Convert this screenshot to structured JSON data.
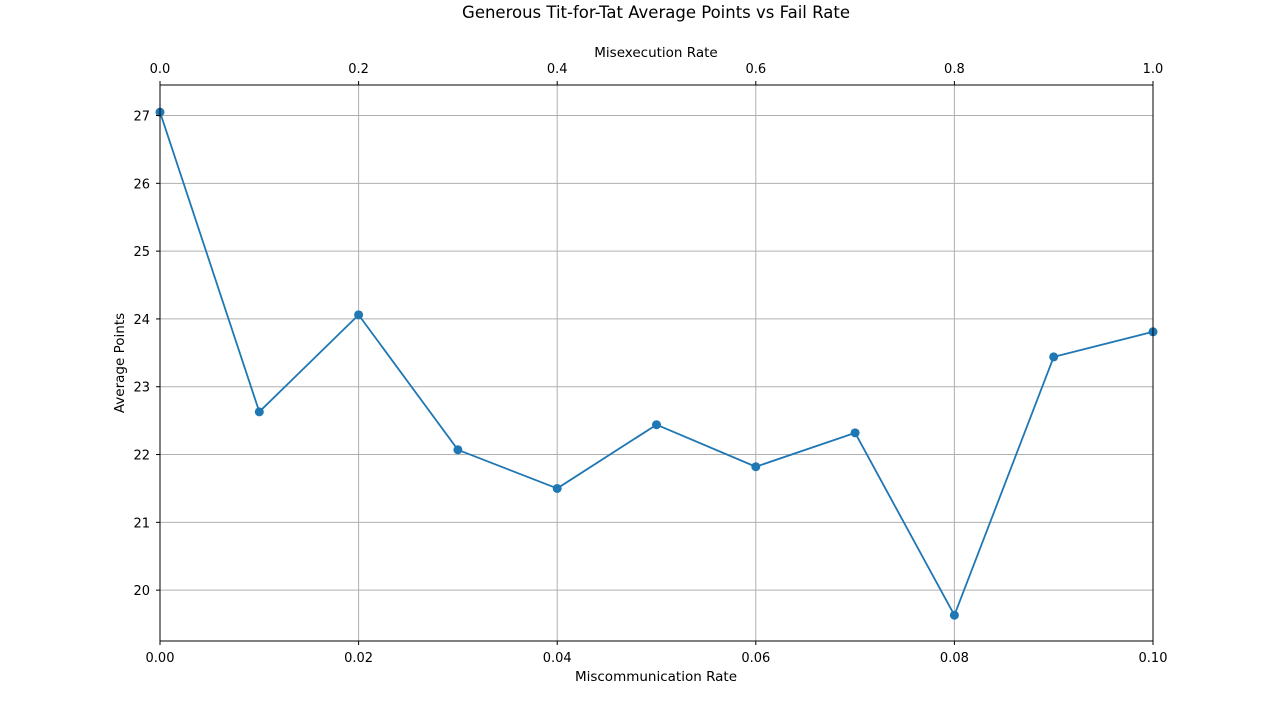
{
  "chart_data": {
    "type": "line",
    "title": "Generous Tit-for-Tat Average Points vs Fail Rate",
    "xlabel": "Miscommunication Rate",
    "x2label": "Misexecution Rate",
    "ylabel": "Average Points",
    "xlim": [
      0.0,
      0.1
    ],
    "x2lim": [
      0.0,
      1.0
    ],
    "ylim": [
      19.25,
      27.45
    ],
    "xticks": [
      "0.00",
      "0.02",
      "0.04",
      "0.06",
      "0.08",
      "0.10"
    ],
    "x2ticks": [
      "0.0",
      "0.2",
      "0.4",
      "0.6",
      "0.8",
      "1.0"
    ],
    "yticks": [
      "20",
      "21",
      "22",
      "23",
      "24",
      "25",
      "26",
      "27"
    ],
    "grid": true,
    "series": [
      {
        "color": "#1f77b4",
        "marker": "circle",
        "x": [
          0.0,
          0.01,
          0.02,
          0.03,
          0.04,
          0.05,
          0.06,
          0.07,
          0.08,
          0.09,
          0.1
        ],
        "values": [
          27.05,
          22.63,
          24.06,
          22.07,
          21.5,
          22.44,
          21.82,
          22.32,
          19.63,
          23.44,
          23.81
        ]
      }
    ]
  }
}
